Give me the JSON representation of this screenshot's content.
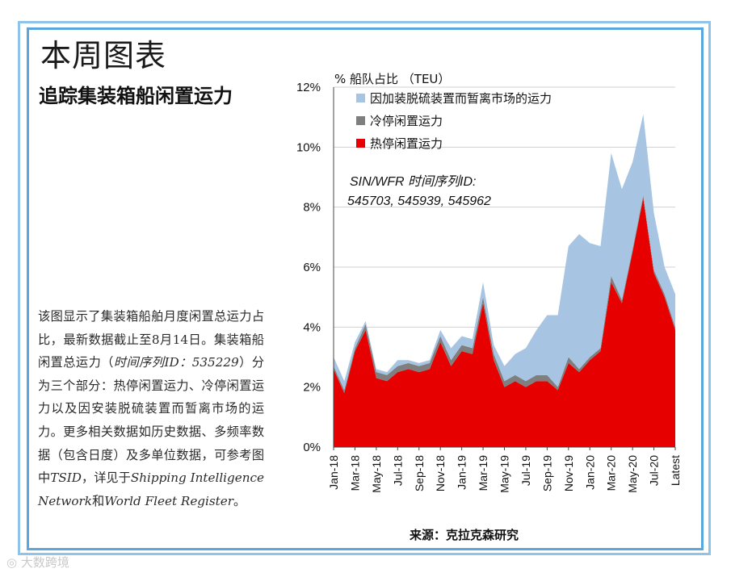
{
  "page": {
    "title": "本周图表",
    "subtitle": "追踪集装箱船闲置运力",
    "description": {
      "p1": "该图显示了集装箱船舶月度闲置总运力占比，最新数据截止至8月14日。集装箱船闲置总运力（",
      "p1_em": "时间序列ID：535229",
      "p2": "）分为三个部分：热停闲置运力、冷停闲置运力以及因安装脱硫装置而暂离市场的运力。更多相关数据如历史数据、多频率数据（包含日度）及多单位数据，可参考图中",
      "p2_em1": "TSID",
      "p3": "，详见于",
      "p3_em": "Shipping Intelligence Network",
      "p4": "和",
      "p4_em": "World Fleet Register",
      "p5": "。"
    },
    "source": "来源：克拉克森研究",
    "watermark": "大数跨境"
  },
  "chart_data": {
    "type": "area",
    "stacked": true,
    "ylabel": "% 船队占比 （TEU）",
    "ylim": [
      0,
      12
    ],
    "yticks": [
      "0%",
      "2%",
      "4%",
      "6%",
      "8%",
      "10%",
      "12%"
    ],
    "xtick_labels": [
      "Jan-18",
      "Mar-18",
      "May-18",
      "Jul-18",
      "Sep-18",
      "Nov-18",
      "Jan-19",
      "Mar-19",
      "May-19",
      "Jul-19",
      "Sep-19",
      "Nov-19",
      "Jan-20",
      "Mar-20",
      "May-20",
      "Jul-20",
      "Latest"
    ],
    "annotation_line1": "SIN/WFR 时间序列ID:",
    "annotation_line2": "545703, 545939, 545962",
    "series": [
      {
        "name": "热停闲置运力",
        "color": "#e60000",
        "values": [
          2.6,
          1.8,
          3.2,
          3.9,
          2.3,
          2.2,
          2.5,
          2.6,
          2.5,
          2.6,
          3.5,
          2.7,
          3.2,
          3.1,
          4.8,
          2.9,
          2.0,
          2.2,
          2.0,
          2.2,
          2.2,
          1.9,
          2.8,
          2.5,
          2.9,
          3.2,
          5.5,
          4.8,
          6.5,
          8.3,
          5.8,
          5.0,
          3.9
        ]
      },
      {
        "name": "冷停闲置运力",
        "color": "#7f7f7f",
        "values": [
          0.1,
          0.1,
          0.1,
          0.2,
          0.2,
          0.2,
          0.2,
          0.2,
          0.2,
          0.2,
          0.2,
          0.2,
          0.2,
          0.2,
          0.2,
          0.2,
          0.2,
          0.2,
          0.2,
          0.2,
          0.2,
          0.1,
          0.2,
          0.1,
          0.1,
          0.1,
          0.2,
          0.1,
          0.1,
          0.1,
          0.1,
          0.1,
          0.1
        ]
      },
      {
        "name": "因加装脱硫装置而暂离市场的运力",
        "color": "#a7c5e2",
        "values": [
          0.3,
          0.3,
          0.2,
          0.1,
          0.1,
          0.1,
          0.2,
          0.1,
          0.1,
          0.1,
          0.2,
          0.4,
          0.3,
          0.3,
          0.5,
          0.3,
          0.5,
          0.7,
          1.1,
          1.5,
          2.0,
          2.4,
          3.7,
          4.5,
          3.8,
          3.4,
          4.1,
          3.7,
          2.9,
          2.7,
          1.9,
          0.9,
          1.1
        ]
      }
    ],
    "legend": [
      {
        "label": "因加装脱硫装置而暂离市场的运力",
        "color": "#a7c5e2"
      },
      {
        "label": "冷停闲置运力",
        "color": "#7f7f7f"
      },
      {
        "label": "热停闲置运力",
        "color": "#e60000"
      }
    ]
  }
}
